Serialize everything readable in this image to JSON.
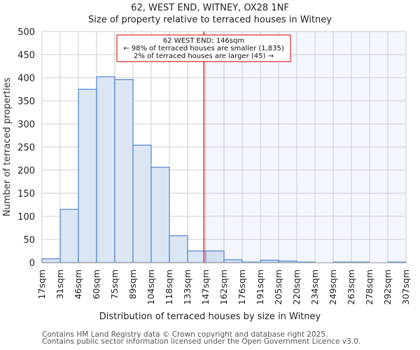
{
  "chart_data": {
    "type": "bar",
    "title": "62, WEST END, WITNEY, OX28 1NF",
    "subtitle": "Size of property relative to terraced houses in Witney",
    "xlabel": "Distribution of terraced houses by size in Witney",
    "ylabel": "Number of terraced properties",
    "ylim": [
      0,
      500
    ],
    "yticks": [
      0,
      50,
      100,
      150,
      200,
      250,
      300,
      350,
      400,
      450,
      500
    ],
    "categories": [
      "17sqm",
      "31sqm",
      "46sqm",
      "60sqm",
      "75sqm",
      "89sqm",
      "104sqm",
      "118sqm",
      "133sqm",
      "147sqm",
      "162sqm",
      "176sqm",
      "191sqm",
      "205sqm",
      "220sqm",
      "234sqm",
      "249sqm",
      "263sqm",
      "278sqm",
      "292sqm",
      "307sqm"
    ],
    "values": [
      8,
      115,
      375,
      402,
      396,
      254,
      206,
      58,
      25,
      25,
      6,
      1,
      5,
      3,
      1,
      0,
      1,
      1,
      0,
      1
    ],
    "grid": true,
    "marker": {
      "value_sqm": 146,
      "label_line1": "62 WEST END: 146sqm",
      "label_line2": "← 98% of terraced houses are smaller (1,835)",
      "label_line3": "2% of terraced houses are larger (45) →"
    },
    "colors": {
      "bar_fill": "#dce6f2",
      "bar_fill_right": "#d4e0f1",
      "bar_edge": "#5b8bd0",
      "marker": "#cc0000",
      "highlight_bg": "#f3f6fd",
      "grid": "#cccccc"
    }
  },
  "footer": {
    "line1": "Contains HM Land Registry data © Crown copyright and database right 2025.",
    "line2": "Contains public sector information licensed under the Open Government Licence v3.0."
  }
}
